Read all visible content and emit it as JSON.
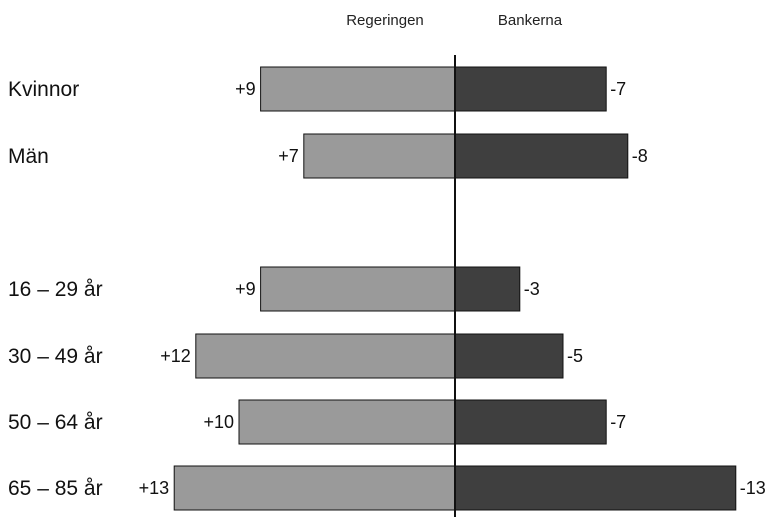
{
  "chart_data": {
    "type": "bar",
    "orientation": "horizontal-diverging",
    "legend": [
      "Regeringen",
      "Bankerna"
    ],
    "legend_placement": "top",
    "categories": [
      "Kvinnor",
      "Män",
      "",
      "16 – 29 år",
      "30 – 49 år",
      "50 – 64 år",
      "65 – 85 år"
    ],
    "series": [
      {
        "name": "Regeringen",
        "values": [
          9,
          7,
          null,
          9,
          12,
          10,
          13
        ],
        "labels": [
          "+9",
          "+7",
          "",
          "+9",
          "+12",
          "+10",
          "+13"
        ],
        "color": "#9a9a9a"
      },
      {
        "name": "Bankerna",
        "values": [
          -7,
          -8,
          null,
          -3,
          -5,
          -7,
          -13
        ],
        "labels": [
          "-7",
          "-8",
          "",
          "-3",
          "-5",
          "-7",
          "-13"
        ],
        "color": "#3f3f3f"
      }
    ],
    "xlim": [
      -13,
      13
    ],
    "grid": false
  }
}
